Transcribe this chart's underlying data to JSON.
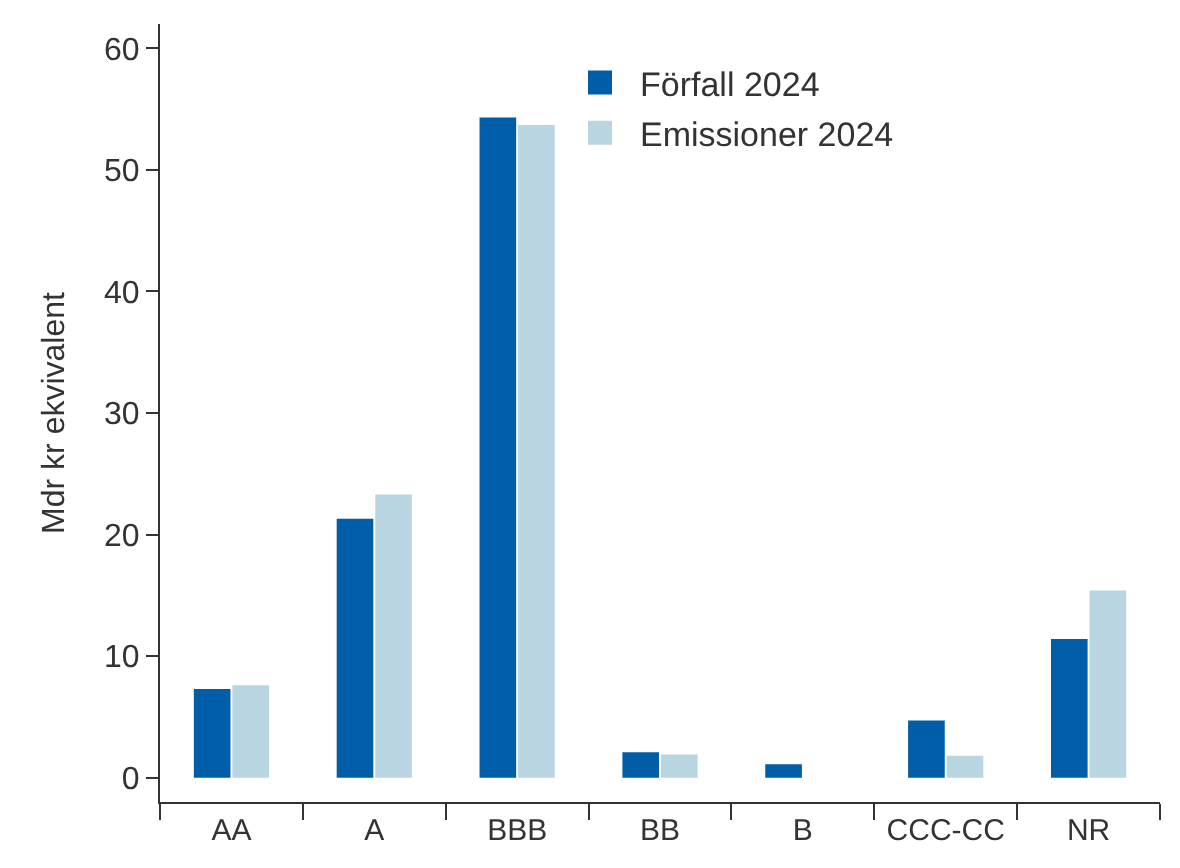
{
  "chart_data": {
    "type": "bar",
    "ylabel": "Mdr kr ekvivalent",
    "categories": [
      "AA",
      "A",
      "BBB",
      "BB",
      "B",
      "CCC-CC",
      "NR"
    ],
    "series": [
      {
        "name": "Förfall 2024",
        "color": "#005ea8",
        "values": [
          7.3,
          21.3,
          54.3,
          2.1,
          1.1,
          4.7,
          11.4
        ]
      },
      {
        "name": "Emissioner 2024",
        "color": "#b9d5e2",
        "values": [
          7.6,
          23.3,
          53.7,
          1.9,
          null,
          1.8,
          15.4
        ]
      }
    ],
    "ylim": [
      -2,
      62
    ],
    "yticks": [
      0,
      10,
      20,
      30,
      40,
      50,
      60
    ],
    "legend": "top"
  }
}
